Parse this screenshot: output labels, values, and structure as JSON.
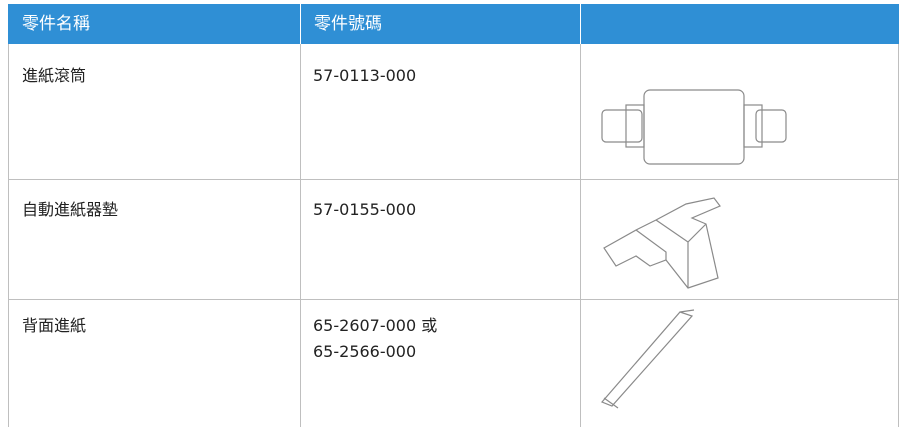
{
  "table": {
    "headers": [
      "零件名稱",
      "零件號碼"
    ],
    "rows": [
      {
        "name": "進紙滾筒",
        "part_number": [
          "57-0113-000"
        ]
      },
      {
        "name": "自動進紙器墊",
        "part_number": [
          "57-0155-000"
        ]
      },
      {
        "name": "背面進紙",
        "part_number": [
          "65-2607-000 或",
          "65-2566-000"
        ]
      }
    ]
  }
}
